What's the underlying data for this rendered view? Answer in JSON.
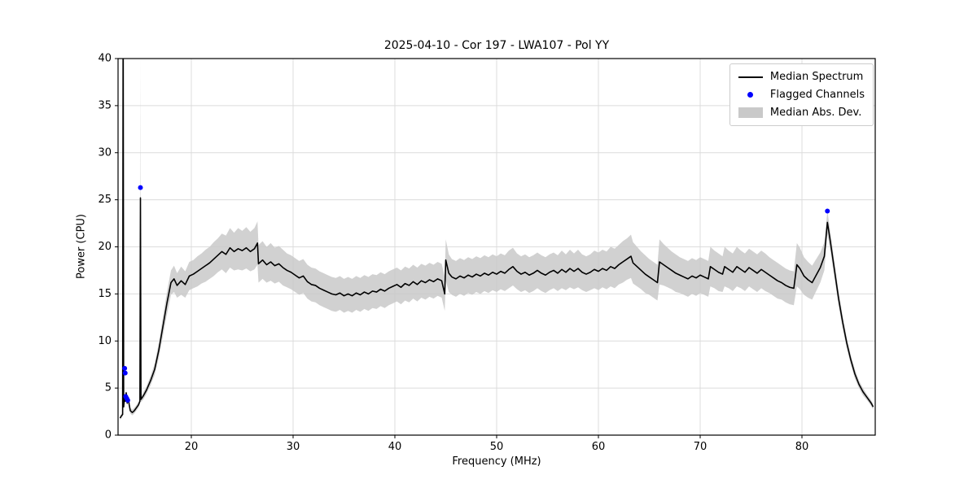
{
  "figure": {
    "title": "2025-04-10 - Cor 197 - LWA107 - Pol YY",
    "xlabel": "Frequency (MHz)",
    "ylabel": "Power (CPU)"
  },
  "chart_data": {
    "type": "line",
    "title": "2025-04-10 - Cor 197 - LWA107 - Pol YY",
    "xlabel": "Frequency (MHz)",
    "ylabel": "Power (CPU)",
    "xlim": [
      12.8,
      87.2
    ],
    "ylim": [
      0,
      40
    ],
    "xticks": [
      20,
      30,
      40,
      50,
      60,
      70,
      80
    ],
    "yticks": [
      0,
      5,
      10,
      15,
      20,
      25,
      30,
      35,
      40
    ],
    "grid": true,
    "legend_position": "upper right",
    "legend": [
      "Median Spectrum",
      "Flagged Channels",
      "Median Abs. Dev."
    ],
    "colors": {
      "line": "#000000",
      "flagged": "#0000ff",
      "band": "#c9c9c9",
      "grid": "#dcdcdc"
    },
    "median_spectrum": {
      "points": [
        [
          13.0,
          1.8,
          0.2
        ],
        [
          13.1,
          2.0,
          0.2
        ],
        [
          13.25,
          2.2,
          0.2
        ],
        [
          13.3,
          46.0,
          0.2
        ],
        [
          13.35,
          3.0,
          0.3
        ],
        [
          13.45,
          4.2,
          0.3
        ],
        [
          13.5,
          3.6,
          0.3
        ],
        [
          13.6,
          4.5,
          0.3
        ],
        [
          13.7,
          3.4,
          0.3
        ],
        [
          13.8,
          4.0,
          0.3
        ],
        [
          13.9,
          3.2,
          0.3
        ],
        [
          14.0,
          2.6,
          0.3
        ],
        [
          14.2,
          2.4,
          0.3
        ],
        [
          14.4,
          2.6,
          0.3
        ],
        [
          14.6,
          2.9,
          0.3
        ],
        [
          14.8,
          3.2,
          0.3
        ],
        [
          14.95,
          3.6,
          0.3
        ],
        [
          15.0,
          25.2,
          15.0
        ],
        [
          15.05,
          3.8,
          0.3
        ],
        [
          15.3,
          4.2,
          0.4
        ],
        [
          15.6,
          4.8,
          0.4
        ],
        [
          16.0,
          5.8,
          0.5
        ],
        [
          16.4,
          7.0,
          0.6
        ],
        [
          16.8,
          9.0,
          0.8
        ],
        [
          17.2,
          11.5,
          1.0
        ],
        [
          17.6,
          14.0,
          1.2
        ],
        [
          18.0,
          16.2,
          1.3
        ],
        [
          18.3,
          16.6,
          1.4
        ],
        [
          18.6,
          15.9,
          1.3
        ],
        [
          19.0,
          16.4,
          1.5
        ],
        [
          19.4,
          16.0,
          1.4
        ],
        [
          19.8,
          16.9,
          1.5
        ],
        [
          20.2,
          17.1,
          1.5
        ],
        [
          20.6,
          17.4,
          1.6
        ],
        [
          21.0,
          17.7,
          1.6
        ],
        [
          21.4,
          18.0,
          1.7
        ],
        [
          21.8,
          18.3,
          1.7
        ],
        [
          22.2,
          18.7,
          1.8
        ],
        [
          22.6,
          19.1,
          1.8
        ],
        [
          23.0,
          19.5,
          1.9
        ],
        [
          23.4,
          19.2,
          2.0
        ],
        [
          23.8,
          19.9,
          2.1
        ],
        [
          24.2,
          19.5,
          2.0
        ],
        [
          24.6,
          19.8,
          2.2
        ],
        [
          25.0,
          19.6,
          2.1
        ],
        [
          25.4,
          19.9,
          2.2
        ],
        [
          25.8,
          19.5,
          2.1
        ],
        [
          26.2,
          19.8,
          2.2
        ],
        [
          26.5,
          20.4,
          2.3
        ],
        [
          26.6,
          18.2,
          2.0
        ],
        [
          27.0,
          18.6,
          2.0
        ],
        [
          27.4,
          18.1,
          1.9
        ],
        [
          27.8,
          18.4,
          2.0
        ],
        [
          28.2,
          18.0,
          1.9
        ],
        [
          28.6,
          18.2,
          1.9
        ],
        [
          29.0,
          17.8,
          1.9
        ],
        [
          29.4,
          17.5,
          1.8
        ],
        [
          29.8,
          17.3,
          1.8
        ],
        [
          30.2,
          17.0,
          1.8
        ],
        [
          30.6,
          16.7,
          1.8
        ],
        [
          31.0,
          16.9,
          1.8
        ],
        [
          31.4,
          16.3,
          1.8
        ],
        [
          31.8,
          16.0,
          1.8
        ],
        [
          32.2,
          15.9,
          1.8
        ],
        [
          32.6,
          15.6,
          1.8
        ],
        [
          33.0,
          15.4,
          1.8
        ],
        [
          33.4,
          15.2,
          1.8
        ],
        [
          33.8,
          15.0,
          1.8
        ],
        [
          34.2,
          14.9,
          1.8
        ],
        [
          34.6,
          15.1,
          1.8
        ],
        [
          35.0,
          14.8,
          1.8
        ],
        [
          35.4,
          15.0,
          1.8
        ],
        [
          35.8,
          14.8,
          1.8
        ],
        [
          36.2,
          15.1,
          1.8
        ],
        [
          36.6,
          14.9,
          1.8
        ],
        [
          37.0,
          15.2,
          1.8
        ],
        [
          37.4,
          15.0,
          1.8
        ],
        [
          37.8,
          15.3,
          1.8
        ],
        [
          38.2,
          15.2,
          1.8
        ],
        [
          38.6,
          15.5,
          1.8
        ],
        [
          39.0,
          15.3,
          1.8
        ],
        [
          39.4,
          15.6,
          1.8
        ],
        [
          39.8,
          15.8,
          1.8
        ],
        [
          40.2,
          16.0,
          1.8
        ],
        [
          40.6,
          15.7,
          1.8
        ],
        [
          41.0,
          16.1,
          1.8
        ],
        [
          41.4,
          15.9,
          1.8
        ],
        [
          41.8,
          16.3,
          1.8
        ],
        [
          42.2,
          16.0,
          1.8
        ],
        [
          42.6,
          16.4,
          1.8
        ],
        [
          43.0,
          16.2,
          1.8
        ],
        [
          43.4,
          16.5,
          1.8
        ],
        [
          43.8,
          16.3,
          1.8
        ],
        [
          44.2,
          16.6,
          1.8
        ],
        [
          44.6,
          16.4,
          1.8
        ],
        [
          44.9,
          15.0,
          1.8
        ],
        [
          45.0,
          18.6,
          2.2
        ],
        [
          45.3,
          17.2,
          2.0
        ],
        [
          45.6,
          16.8,
          1.9
        ],
        [
          46.0,
          16.6,
          1.9
        ],
        [
          46.4,
          16.9,
          1.9
        ],
        [
          46.8,
          16.7,
          1.9
        ],
        [
          47.2,
          17.0,
          1.9
        ],
        [
          47.6,
          16.8,
          1.9
        ],
        [
          48.0,
          17.1,
          1.9
        ],
        [
          48.4,
          16.9,
          1.9
        ],
        [
          48.8,
          17.2,
          1.9
        ],
        [
          49.2,
          17.0,
          1.9
        ],
        [
          49.6,
          17.3,
          1.9
        ],
        [
          50.0,
          17.1,
          1.9
        ],
        [
          50.4,
          17.4,
          1.9
        ],
        [
          50.8,
          17.2,
          1.9
        ],
        [
          51.2,
          17.6,
          2.0
        ],
        [
          51.6,
          17.9,
          2.0
        ],
        [
          52.0,
          17.4,
          1.9
        ],
        [
          52.4,
          17.1,
          1.9
        ],
        [
          52.8,
          17.3,
          1.9
        ],
        [
          53.2,
          17.0,
          1.9
        ],
        [
          53.6,
          17.2,
          1.9
        ],
        [
          54.0,
          17.5,
          1.9
        ],
        [
          54.4,
          17.2,
          1.9
        ],
        [
          54.8,
          17.0,
          1.9
        ],
        [
          55.2,
          17.3,
          1.9
        ],
        [
          55.6,
          17.5,
          1.9
        ],
        [
          56.0,
          17.2,
          1.9
        ],
        [
          56.4,
          17.6,
          2.0
        ],
        [
          56.8,
          17.3,
          1.9
        ],
        [
          57.2,
          17.7,
          2.0
        ],
        [
          57.6,
          17.4,
          1.9
        ],
        [
          58.0,
          17.7,
          2.0
        ],
        [
          58.4,
          17.3,
          1.9
        ],
        [
          58.8,
          17.1,
          1.9
        ],
        [
          59.2,
          17.3,
          1.9
        ],
        [
          59.6,
          17.6,
          2.0
        ],
        [
          60.0,
          17.4,
          2.0
        ],
        [
          60.4,
          17.7,
          2.0
        ],
        [
          60.8,
          17.5,
          2.0
        ],
        [
          61.2,
          17.9,
          2.1
        ],
        [
          61.6,
          17.7,
          2.1
        ],
        [
          62.0,
          18.1,
          2.1
        ],
        [
          62.4,
          18.4,
          2.2
        ],
        [
          62.8,
          18.7,
          2.2
        ],
        [
          63.2,
          19.0,
          2.3
        ],
        [
          63.4,
          18.3,
          2.2
        ],
        [
          63.8,
          17.9,
          2.1
        ],
        [
          64.2,
          17.5,
          2.0
        ],
        [
          64.6,
          17.1,
          2.0
        ],
        [
          65.0,
          16.8,
          1.9
        ],
        [
          65.4,
          16.5,
          1.9
        ],
        [
          65.8,
          16.2,
          1.9
        ],
        [
          66.0,
          18.4,
          2.4
        ],
        [
          66.4,
          18.1,
          2.2
        ],
        [
          66.8,
          17.8,
          2.1
        ],
        [
          67.2,
          17.5,
          2.0
        ],
        [
          67.6,
          17.2,
          2.0
        ],
        [
          68.0,
          17.0,
          1.9
        ],
        [
          68.4,
          16.8,
          1.9
        ],
        [
          68.8,
          16.6,
          1.9
        ],
        [
          69.2,
          16.9,
          1.9
        ],
        [
          69.6,
          16.7,
          1.9
        ],
        [
          70.0,
          17.0,
          1.9
        ],
        [
          70.4,
          16.8,
          1.9
        ],
        [
          70.8,
          16.6,
          1.9
        ],
        [
          71.0,
          17.9,
          2.1
        ],
        [
          71.4,
          17.6,
          2.0
        ],
        [
          71.8,
          17.3,
          2.0
        ],
        [
          72.2,
          17.1,
          1.9
        ],
        [
          72.4,
          17.9,
          2.1
        ],
        [
          72.8,
          17.6,
          2.0
        ],
        [
          73.2,
          17.3,
          2.0
        ],
        [
          73.6,
          17.9,
          2.1
        ],
        [
          74.0,
          17.6,
          2.0
        ],
        [
          74.4,
          17.3,
          2.0
        ],
        [
          74.8,
          17.8,
          2.0
        ],
        [
          75.2,
          17.5,
          2.0
        ],
        [
          75.6,
          17.2,
          2.0
        ],
        [
          76.0,
          17.6,
          2.0
        ],
        [
          76.4,
          17.3,
          2.0
        ],
        [
          76.8,
          17.0,
          1.9
        ],
        [
          77.2,
          16.7,
          1.9
        ],
        [
          77.6,
          16.4,
          1.9
        ],
        [
          78.0,
          16.2,
          1.8
        ],
        [
          78.4,
          15.9,
          1.8
        ],
        [
          78.8,
          15.7,
          1.8
        ],
        [
          79.2,
          15.6,
          1.8
        ],
        [
          79.5,
          18.1,
          2.3
        ],
        [
          79.8,
          17.7,
          2.2
        ],
        [
          80.2,
          16.9,
          2.0
        ],
        [
          80.6,
          16.5,
          1.9
        ],
        [
          81.0,
          16.2,
          1.8
        ],
        [
          81.4,
          17.0,
          1.7
        ],
        [
          81.8,
          17.8,
          1.6
        ],
        [
          82.2,
          19.0,
          1.5
        ],
        [
          82.5,
          22.6,
          1.2
        ],
        [
          82.8,
          20.5,
          1.0
        ],
        [
          83.2,
          17.5,
          0.9
        ],
        [
          83.6,
          14.5,
          0.8
        ],
        [
          84.0,
          12.0,
          0.7
        ],
        [
          84.4,
          9.8,
          0.6
        ],
        [
          84.8,
          8.0,
          0.5
        ],
        [
          85.2,
          6.5,
          0.5
        ],
        [
          85.6,
          5.4,
          0.4
        ],
        [
          86.0,
          4.6,
          0.4
        ],
        [
          86.4,
          4.0,
          0.3
        ],
        [
          86.8,
          3.4,
          0.3
        ],
        [
          87.0,
          3.0,
          0.3
        ]
      ]
    },
    "flagged_channels": [
      [
        13.45,
        7.1
      ],
      [
        13.5,
        6.6
      ],
      [
        13.55,
        4.1
      ],
      [
        13.65,
        3.9
      ],
      [
        13.75,
        3.7
      ],
      [
        15.0,
        26.3
      ],
      [
        82.5,
        23.8
      ]
    ]
  }
}
